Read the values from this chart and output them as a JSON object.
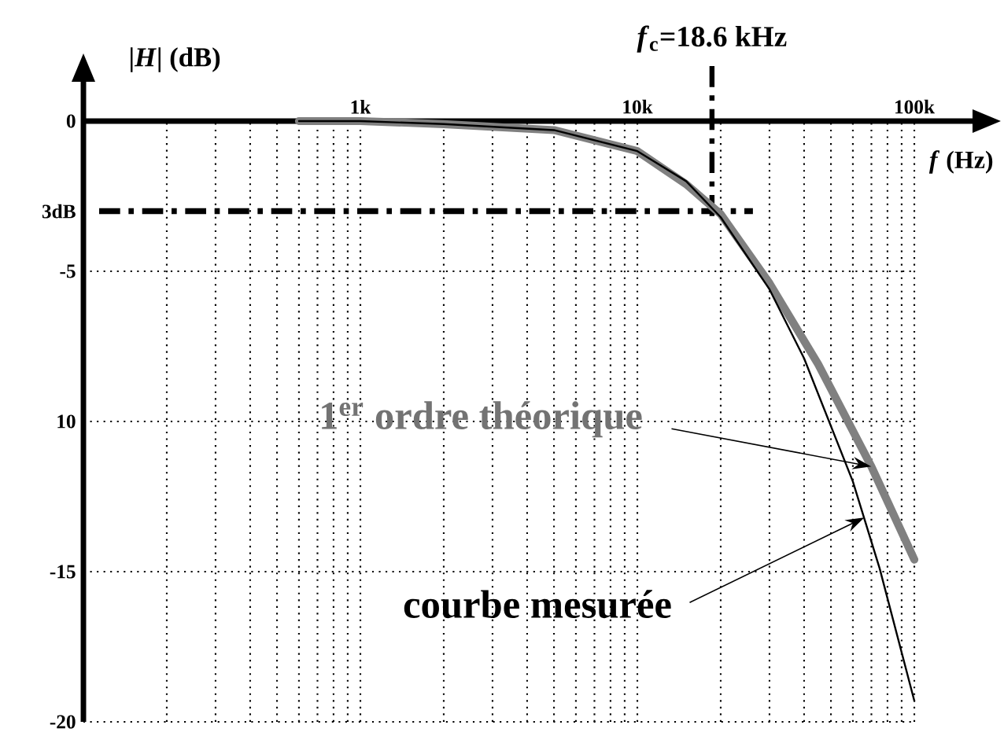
{
  "chart_data": {
    "type": "line",
    "ylabel": "|*H*| (dB)",
    "xlabel": "*f* (Hz)",
    "log": "x",
    "xlim": [
      100,
      100000
    ],
    "ylim": [
      -20,
      0
    ],
    "xticks": [
      {
        "value": 200,
        "label": null
      },
      {
        "value": 300,
        "label": null
      },
      {
        "value": 400,
        "label": null
      },
      {
        "value": 500,
        "label": null
      },
      {
        "value": 600,
        "label": null
      },
      {
        "value": 700,
        "label": null
      },
      {
        "value": 800,
        "label": null
      },
      {
        "value": 900,
        "label": null
      },
      {
        "value": 1000,
        "label": "1k"
      },
      {
        "value": 2000,
        "label": null
      },
      {
        "value": 3000,
        "label": null
      },
      {
        "value": 4000,
        "label": null
      },
      {
        "value": 5000,
        "label": null
      },
      {
        "value": 6000,
        "label": null
      },
      {
        "value": 7000,
        "label": null
      },
      {
        "value": 8000,
        "label": null
      },
      {
        "value": 9000,
        "label": null
      },
      {
        "value": 10000,
        "label": "10k"
      },
      {
        "value": 20000,
        "label": null
      },
      {
        "value": 30000,
        "label": null
      },
      {
        "value": 40000,
        "label": null
      },
      {
        "value": 50000,
        "label": null
      },
      {
        "value": 60000,
        "label": null
      },
      {
        "value": 70000,
        "label": null
      },
      {
        "value": 80000,
        "label": null
      },
      {
        "value": 90000,
        "label": null
      },
      {
        "value": 100000,
        "label": "100k"
      }
    ],
    "yticks": [
      0,
      {
        "value": -3,
        "label": "3dB"
      },
      -5,
      {
        "value": -10,
        "label": "10"
      },
      -15,
      -20
    ],
    "grid": true,
    "series": [
      {
        "color": "#808080",
        "x": [
          600,
          1000,
          2000,
          5000,
          10000,
          15000,
          20000,
          30000,
          45000,
          70000,
          100000
        ],
        "values": [
          0,
          0,
          -0.1,
          -0.3,
          -1.0,
          -2.1,
          -3.1,
          -5.4,
          -8.1,
          -11.5,
          -14.6
        ]
      },
      {
        "color": "#000000",
        "x": [
          600,
          1000,
          2000,
          5000,
          10000,
          15000,
          20000,
          30000,
          40000,
          60000,
          75000,
          100000
        ],
        "values": [
          0,
          0,
          -0.1,
          -0.3,
          -1.0,
          -2.0,
          -3.2,
          -5.6,
          -7.9,
          -12.0,
          -14.9,
          -19.3
        ]
      }
    ],
    "ref_lines": [
      {
        "axis": "y",
        "value": -3,
        "line_style": "dashdot"
      },
      {
        "axis": "x",
        "value": 18600,
        "line_style": "dashdot"
      }
    ],
    "annotations": [
      "*f*$_{c}$=18.6 kHz",
      {
        "text": "1$^{er}$ ordre théorique",
        "x": 70000,
        "y": -11.5
      },
      {
        "text": "courbe mesurée",
        "x": 66000,
        "y": -13.2
      }
    ]
  }
}
